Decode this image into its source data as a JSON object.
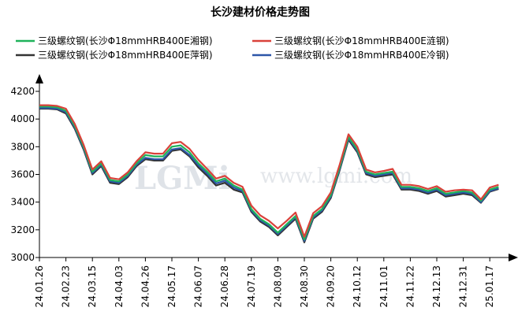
{
  "chart_data": {
    "type": "line",
    "title": "长沙建材价格走势图",
    "watermark": "LGMi",
    "watermark_url": "www.lgmi.com",
    "categories": [
      "24.01.26",
      null,
      null,
      "24.02.23",
      null,
      null,
      "24.03.15",
      null,
      null,
      "24.04.03",
      null,
      null,
      "24.04.26",
      null,
      null,
      "24.05.17",
      null,
      null,
      "24.06.07",
      null,
      null,
      "24.06.28",
      null,
      null,
      "24.07.19",
      null,
      null,
      "24.08.09",
      null,
      null,
      "24.08.30",
      null,
      null,
      "24.09.20",
      null,
      null,
      "24.10.12",
      null,
      null,
      "24.11.01",
      null,
      null,
      "24.11.22",
      null,
      null,
      "24.12.13",
      null,
      null,
      "24.12.31",
      null,
      null,
      "25.01.17",
      null
    ],
    "series": [
      {
        "name": "三级螺纹钢(长沙Φ18mmHRB400E湘钢)",
        "color": "#1fb25a",
        "values": [
          4090,
          4090,
          4085,
          4060,
          3950,
          3800,
          3620,
          3680,
          3560,
          3550,
          3600,
          3680,
          3740,
          3730,
          3730,
          3800,
          3810,
          3760,
          3680,
          3620,
          3550,
          3570,
          3520,
          3490,
          3350,
          3280,
          3240,
          3180,
          3240,
          3300,
          3130,
          3300,
          3350,
          3450,
          3650,
          3870,
          3780,
          3620,
          3600,
          3610,
          3620,
          3510,
          3510,
          3500,
          3480,
          3500,
          3460,
          3470,
          3480,
          3470,
          3410,
          3490,
          3510
        ]
      },
      {
        "name": "三级螺纹钢(长沙Φ18mmHRB400E涟钢)",
        "color": "#d9413a",
        "values": [
          4100,
          4100,
          4095,
          4075,
          3965,
          3815,
          3635,
          3695,
          3575,
          3565,
          3615,
          3695,
          3760,
          3750,
          3750,
          3825,
          3835,
          3785,
          3705,
          3640,
          3570,
          3590,
          3540,
          3510,
          3375,
          3305,
          3265,
          3210,
          3265,
          3325,
          3150,
          3320,
          3370,
          3470,
          3670,
          3890,
          3800,
          3635,
          3615,
          3625,
          3640,
          3525,
          3525,
          3515,
          3495,
          3515,
          3475,
          3485,
          3490,
          3485,
          3420,
          3505,
          3525
        ]
      },
      {
        "name": "三级螺纹钢(长沙Φ18mmHRB400E萍钢)",
        "color": "#333333",
        "values": [
          4075,
          4075,
          4070,
          4040,
          3930,
          3780,
          3600,
          3660,
          3540,
          3530,
          3580,
          3660,
          3710,
          3700,
          3700,
          3770,
          3780,
          3730,
          3650,
          3590,
          3520,
          3540,
          3490,
          3470,
          3330,
          3260,
          3220,
          3160,
          3220,
          3280,
          3110,
          3280,
          3330,
          3430,
          3630,
          3850,
          3760,
          3600,
          3580,
          3590,
          3600,
          3490,
          3490,
          3480,
          3460,
          3480,
          3440,
          3450,
          3460,
          3450,
          3395,
          3475,
          3495
        ]
      },
      {
        "name": "三级螺纹钢(长沙Φ18mmHRB400E冷钢)",
        "color": "#2c56a8",
        "values": [
          4080,
          4080,
          4075,
          4050,
          3940,
          3790,
          3610,
          3670,
          3550,
          3540,
          3590,
          3670,
          3720,
          3710,
          3710,
          3780,
          3790,
          3740,
          3665,
          3605,
          3535,
          3555,
          3505,
          3480,
          3340,
          3270,
          3230,
          3170,
          3230,
          3290,
          3120,
          3290,
          3340,
          3440,
          3640,
          3860,
          3770,
          3610,
          3590,
          3600,
          3610,
          3500,
          3500,
          3490,
          3470,
          3490,
          3450,
          3460,
          3470,
          3460,
          3400,
          3480,
          3500
        ]
      }
    ],
    "ylim": [
      3000,
      4200
    ],
    "yticks": [
      3000,
      3200,
      3400,
      3600,
      3800,
      4000,
      4200
    ],
    "grid": false
  }
}
